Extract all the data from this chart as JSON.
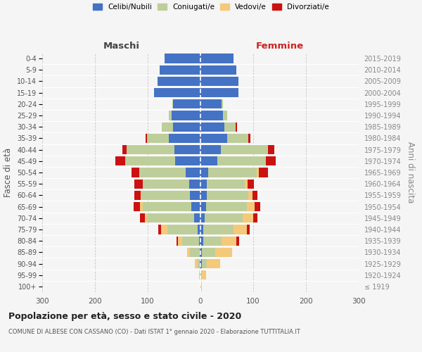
{
  "age_groups": [
    "100+",
    "95-99",
    "90-94",
    "85-89",
    "80-84",
    "75-79",
    "70-74",
    "65-69",
    "60-64",
    "55-59",
    "50-54",
    "45-49",
    "40-44",
    "35-39",
    "30-34",
    "25-29",
    "20-24",
    "15-19",
    "10-14",
    "5-9",
    "0-4"
  ],
  "birth_years": [
    "≤ 1919",
    "1920-1924",
    "1925-1929",
    "1930-1934",
    "1935-1939",
    "1940-1944",
    "1945-1949",
    "1950-1954",
    "1955-1959",
    "1960-1964",
    "1965-1969",
    "1970-1974",
    "1975-1979",
    "1980-1984",
    "1985-1989",
    "1990-1994",
    "1995-1999",
    "2000-2004",
    "2005-2009",
    "2010-2014",
    "2015-2019"
  ],
  "colors": {
    "celibe": "#4472C4",
    "coniugato": "#BECE9B",
    "vedovo": "#F5C97A",
    "divorziato": "#CC1111"
  },
  "males": {
    "celibe": [
      0,
      0,
      1,
      2,
      3,
      5,
      12,
      18,
      20,
      22,
      28,
      48,
      50,
      60,
      52,
      55,
      52,
      88,
      82,
      78,
      68
    ],
    "coniugato": [
      0,
      1,
      5,
      18,
      32,
      58,
      88,
      92,
      92,
      88,
      88,
      95,
      90,
      42,
      22,
      5,
      2,
      0,
      0,
      0,
      0
    ],
    "vedovo": [
      0,
      2,
      5,
      5,
      8,
      12,
      5,
      5,
      2,
      0,
      0,
      0,
      0,
      0,
      0,
      0,
      0,
      0,
      0,
      0,
      0
    ],
    "divorziato": [
      0,
      0,
      0,
      0,
      2,
      5,
      10,
      12,
      12,
      15,
      15,
      18,
      8,
      2,
      0,
      0,
      0,
      0,
      0,
      0,
      0
    ]
  },
  "females": {
    "nubile": [
      0,
      0,
      2,
      3,
      5,
      5,
      8,
      10,
      12,
      12,
      15,
      32,
      38,
      50,
      45,
      42,
      40,
      72,
      72,
      68,
      62
    ],
    "coniugata": [
      0,
      2,
      10,
      25,
      35,
      58,
      72,
      78,
      78,
      72,
      92,
      92,
      90,
      40,
      22,
      8,
      2,
      0,
      0,
      0,
      0
    ],
    "vedova": [
      2,
      8,
      25,
      32,
      28,
      25,
      20,
      15,
      8,
      5,
      3,
      0,
      0,
      0,
      0,
      0,
      0,
      0,
      0,
      0,
      0
    ],
    "divorziata": [
      0,
      0,
      0,
      0,
      5,
      5,
      8,
      10,
      10,
      12,
      18,
      18,
      12,
      5,
      2,
      0,
      0,
      0,
      0,
      0,
      0
    ]
  },
  "title": "Popolazione per età, sesso e stato civile - 2020",
  "subtitle": "COMUNE DI ALBESE CON CASSANO (CO) - Dati ISTAT 1° gennaio 2020 - Elaborazione TUTTITALIA.IT",
  "xlabel_left": "Maschi",
  "xlabel_right": "Femmine",
  "ylabel_left": "Fasce di età",
  "ylabel_right": "Anni di nascita",
  "xlim": 300,
  "bg_color": "#f5f5f5",
  "grid_color": "#c8c8c8",
  "legend_labels": [
    "Celibi/Nubili",
    "Coniugati/e",
    "Vedovi/e",
    "Divorziati/e"
  ]
}
